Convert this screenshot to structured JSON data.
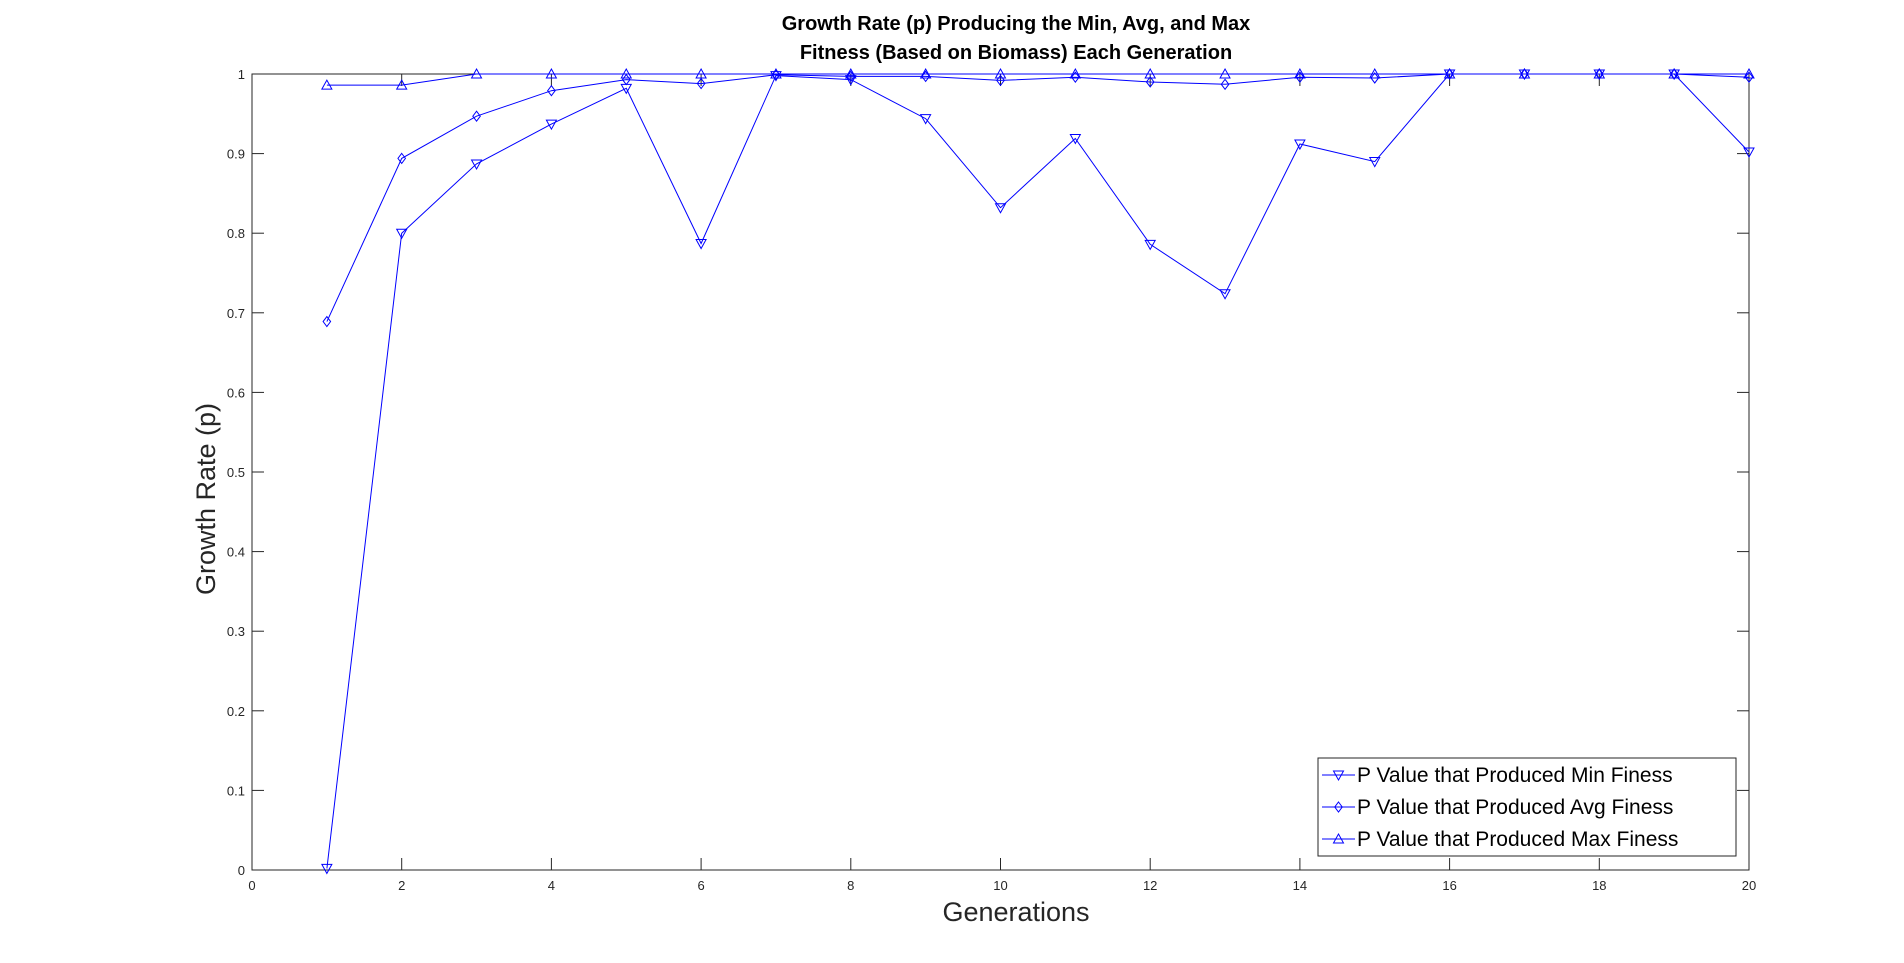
{
  "chart_data": {
    "type": "line",
    "title": [
      "Growth Rate (p) Producing the Min, Avg, and Max",
      "Fitness (Based on Biomass) Each Generation"
    ],
    "xlabel": "Generations",
    "ylabel": "Growth Rate (p)",
    "xlim": [
      0,
      20
    ],
    "ylim": [
      0,
      1
    ],
    "xticks": [
      0,
      2,
      4,
      6,
      8,
      10,
      12,
      14,
      16,
      18,
      20
    ],
    "yticks": [
      0,
      0.1,
      0.2,
      0.3,
      0.4,
      0.5,
      0.6,
      0.7,
      0.8,
      0.9,
      1
    ],
    "grid": false,
    "legend_position": "bottom-right",
    "series": [
      {
        "name": "P Value that Produced Min Finess",
        "marker": "triangle-down",
        "color": "#0000ff",
        "x": [
          1,
          2,
          3,
          4,
          5,
          6,
          7,
          8,
          9,
          10,
          11,
          12,
          13,
          14,
          15,
          16,
          17,
          18,
          19,
          20
        ],
        "y": [
          0.002,
          0.8,
          0.887,
          0.937,
          0.982,
          0.787,
          0.998,
          0.993,
          0.944,
          0.832,
          0.919,
          0.786,
          0.724,
          0.912,
          0.89,
          1.0,
          1.0,
          1.0,
          1.0,
          0.902
        ]
      },
      {
        "name": "P Value that Produced Avg Finess",
        "marker": "diamond",
        "color": "#0000ff",
        "x": [
          1,
          2,
          3,
          4,
          5,
          6,
          7,
          8,
          9,
          10,
          11,
          12,
          13,
          14,
          15,
          16,
          17,
          18,
          19,
          20
        ],
        "y": [
          0.689,
          0.894,
          0.947,
          0.979,
          0.993,
          0.988,
          0.999,
          0.997,
          0.997,
          0.992,
          0.996,
          0.99,
          0.987,
          0.996,
          0.995,
          1.0,
          1.0,
          1.0,
          1.0,
          0.996
        ]
      },
      {
        "name": "P Value that Produced Max Finess",
        "marker": "triangle-up",
        "color": "#0000ff",
        "x": [
          1,
          2,
          3,
          4,
          5,
          6,
          7,
          8,
          9,
          10,
          11,
          12,
          13,
          14,
          15,
          16,
          17,
          18,
          19,
          20
        ],
        "y": [
          0.986,
          0.986,
          1.0,
          1.0,
          1.0,
          1.0,
          1.0,
          1.0,
          1.0,
          1.0,
          1.0,
          1.0,
          1.0,
          1.0,
          1.0,
          1.0,
          1.0,
          1.0,
          1.0,
          1.0
        ]
      }
    ]
  }
}
